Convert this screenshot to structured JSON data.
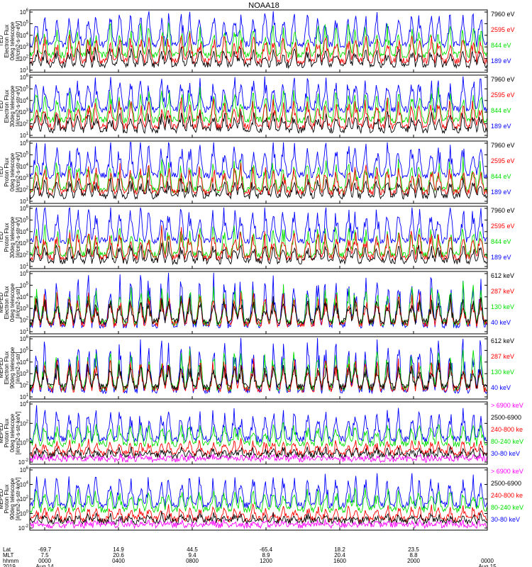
{
  "title": "NOAA18",
  "colors": {
    "blue": "#0000ff",
    "red": "#ff0000",
    "green": "#00e000",
    "black": "#000000",
    "magenta": "#ff00ff"
  },
  "chart_data": {
    "type": "line",
    "panels": [
      {
        "ylabel": [
          "TED",
          "Electron Flux",
          "0deg telescope",
          "[#/cm2-s-str-eV]"
        ],
        "yticks": [
          "10^1",
          "10^2",
          "10^3",
          "10^4",
          "10^5",
          "10^6"
        ],
        "legend": [
          {
            "text": "7960 eV",
            "color": "black"
          },
          {
            "text": "2595 eV",
            "color": "red"
          },
          {
            "text": "844 eV",
            "color": "green"
          },
          {
            "text": "189 eV",
            "color": "blue"
          }
        ]
      },
      {
        "ylabel": [
          "TED",
          "Electron Flux",
          "30deg telescope",
          "[#/cm2-s-str-eV]"
        ],
        "yticks": [
          "10^1",
          "10^2",
          "10^3",
          "10^4",
          "10^5",
          "10^6"
        ],
        "legend": [
          {
            "text": "7960 eV",
            "color": "black"
          },
          {
            "text": "2595 eV",
            "color": "red"
          },
          {
            "text": "844 eV",
            "color": "green"
          },
          {
            "text": "189 eV",
            "color": "blue"
          }
        ]
      },
      {
        "ylabel": [
          "TED",
          "Proton Flux",
          "0deg telescope",
          "[#/cm2-s-str-eV]"
        ],
        "yticks": [
          "10^1",
          "10^2",
          "10^3",
          "10^4",
          "10^5",
          "10^6"
        ],
        "legend": [
          {
            "text": "7960 eV",
            "color": "black"
          },
          {
            "text": "2595 eV",
            "color": "red"
          },
          {
            "text": "844 eV",
            "color": "green"
          },
          {
            "text": "189 eV",
            "color": "blue"
          }
        ]
      },
      {
        "ylabel": [
          "TED",
          "Proton Flux",
          "30deg telescope",
          "[#/cm2-s-str-eV]"
        ],
        "yticks": [
          "10^1",
          "10^2",
          "10^3",
          "10^4",
          "10^5",
          "10^6"
        ],
        "legend": [
          {
            "text": "7960 eV",
            "color": "black"
          },
          {
            "text": "2595 eV",
            "color": "red"
          },
          {
            "text": "844 eV",
            "color": "green"
          },
          {
            "text": "189 eV",
            "color": "blue"
          }
        ]
      },
      {
        "ylabel": [
          "MEPED",
          "Electron Flux",
          "0deg telescope",
          "[#/cm2-s-str]"
        ],
        "yticks": [
          "10^1",
          "10^2",
          "10^3",
          "10^4",
          "10^5",
          "10^6"
        ],
        "legend": [
          {
            "text": "612 keV",
            "color": "black"
          },
          {
            "text": "287 keV",
            "color": "red"
          },
          {
            "text": "130 keV",
            "color": "green"
          },
          {
            "text": "40 keV",
            "color": "blue"
          }
        ]
      },
      {
        "ylabel": [
          "MEPED",
          "Electron Flux",
          "90deg telescope",
          "[#/cm2-s-str]"
        ],
        "yticks": [
          "10^1",
          "10^2",
          "10^3",
          "10^4",
          "10^5",
          "10^6"
        ],
        "legend": [
          {
            "text": "612 keV",
            "color": "black"
          },
          {
            "text": "287 keV",
            "color": "red"
          },
          {
            "text": "130 keV",
            "color": "green"
          },
          {
            "text": "40 keV",
            "color": "blue"
          }
        ]
      },
      {
        "ylabel": [
          "MEPED",
          "Proton Flux",
          "0deg telescope",
          "[#/cm2-s-str-keV]"
        ],
        "yticks": [
          "10^-2",
          "10^0",
          "10^2",
          "10^4"
        ],
        "legend": [
          {
            "text": "> 6900 keV",
            "color": "magenta"
          },
          {
            "text": "2500-6900",
            "color": "black"
          },
          {
            "text": "240-800 ke",
            "color": "red"
          },
          {
            "text": "80-240 keV",
            "color": "green"
          },
          {
            "text": "30-80 keV",
            "color": "blue"
          }
        ]
      },
      {
        "ylabel": [
          "MEPED",
          "Proton Flux",
          "90deg telescope",
          "[#/cm2-s-str-keV]"
        ],
        "yticks": [
          "10^-2",
          "10^0",
          "10^2",
          "10^4",
          "10^6"
        ],
        "legend": [
          {
            "text": "> 6900 keV",
            "color": "magenta"
          },
          {
            "text": "2500-6900",
            "color": "black"
          },
          {
            "text": "240-800 ke",
            "color": "red"
          },
          {
            "text": "80-240 keV",
            "color": "green"
          },
          {
            "text": "30-80 keV",
            "color": "blue"
          }
        ]
      }
    ],
    "x_axis": {
      "row_labels": [
        "Lat",
        "MLT",
        "hhmm",
        "2019"
      ],
      "ticks": [
        {
          "lat": "-69.7",
          "mlt": "7.5",
          "hhmm": "0000",
          "date": "Aug 14"
        },
        {
          "lat": "14.9",
          "mlt": "20.6",
          "hhmm": "0400",
          "date": ""
        },
        {
          "lat": "44.5",
          "mlt": "9.4",
          "hhmm": "0800",
          "date": ""
        },
        {
          "lat": "-65.4",
          "mlt": "8.9",
          "hhmm": "1200",
          "date": ""
        },
        {
          "lat": "18.2",
          "mlt": "20.4",
          "hhmm": "1600",
          "date": ""
        },
        {
          "lat": "23.5",
          "mlt": "8.8",
          "hhmm": "2000",
          "date": ""
        },
        {
          "lat": "",
          "mlt": "",
          "hhmm": "0000",
          "date": "Aug 15"
        }
      ]
    }
  }
}
